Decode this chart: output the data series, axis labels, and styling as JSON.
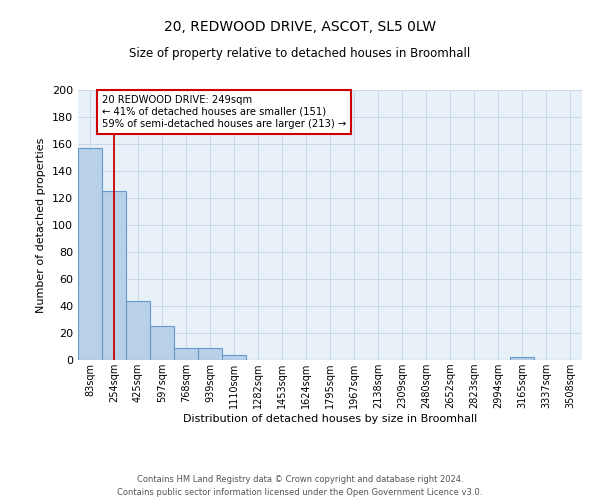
{
  "title": "20, REDWOOD DRIVE, ASCOT, SL5 0LW",
  "subtitle": "Size of property relative to detached houses in Broomhall",
  "xlabel": "Distribution of detached houses by size in Broomhall",
  "ylabel": "Number of detached properties",
  "bin_labels": [
    "83sqm",
    "254sqm",
    "425sqm",
    "597sqm",
    "768sqm",
    "939sqm",
    "1110sqm",
    "1282sqm",
    "1453sqm",
    "1624sqm",
    "1795sqm",
    "1967sqm",
    "2138sqm",
    "2309sqm",
    "2480sqm",
    "2652sqm",
    "2823sqm",
    "2994sqm",
    "3165sqm",
    "3337sqm",
    "3508sqm"
  ],
  "bar_values": [
    157,
    125,
    44,
    25,
    9,
    9,
    4,
    0,
    0,
    0,
    0,
    0,
    0,
    0,
    0,
    0,
    0,
    0,
    2,
    0,
    0
  ],
  "bar_color": "#b8d0e8",
  "bar_edge_color": "#6699cc",
  "grid_color": "#c8d8e8",
  "bg_color": "#e8f0f8",
  "property_line_color": "#cc0000",
  "annotation_text": "20 REDWOOD DRIVE: 249sqm\n← 41% of detached houses are smaller (151)\n59% of semi-detached houses are larger (213) →",
  "annotation_box_color": "#ffffff",
  "annotation_box_edge": "#cc0000",
  "ylim": [
    0,
    200
  ],
  "yticks": [
    0,
    20,
    40,
    60,
    80,
    100,
    120,
    140,
    160,
    180,
    200
  ],
  "footnote1": "Contains HM Land Registry data © Crown copyright and database right 2024.",
  "footnote2": "Contains public sector information licensed under the Open Government Licence v3.0."
}
